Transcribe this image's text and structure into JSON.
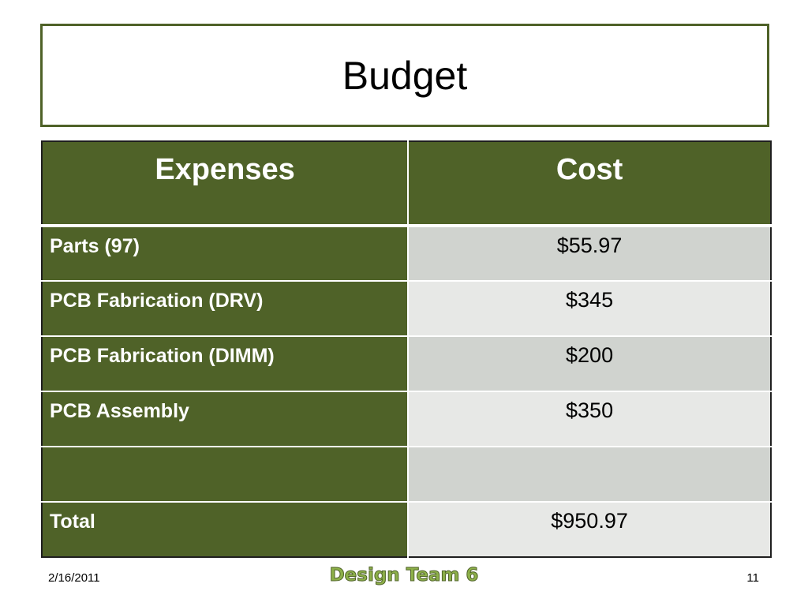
{
  "slide": {
    "title": "Budget"
  },
  "table": {
    "headers": [
      "Expenses",
      "Cost"
    ],
    "rows": [
      {
        "expense": "Parts (97)",
        "cost": "$55.97"
      },
      {
        "expense": "PCB Fabrication (DRV)",
        "cost": "$345"
      },
      {
        "expense": "PCB Fabrication (DIMM)",
        "cost": "$200"
      },
      {
        "expense": "PCB Assembly",
        "cost": "$350"
      },
      {
        "expense": "",
        "cost": ""
      },
      {
        "expense": "Total",
        "cost": "$950.97"
      }
    ]
  },
  "footer": {
    "date": "2/16/2011",
    "center": "Design Team 6",
    "page": "11"
  },
  "colors": {
    "accent_green": "#4f6228",
    "footer_text_green": "#8db049",
    "row_gray_dark": "#d0d3cf",
    "row_gray_light": "#e7e8e6"
  }
}
